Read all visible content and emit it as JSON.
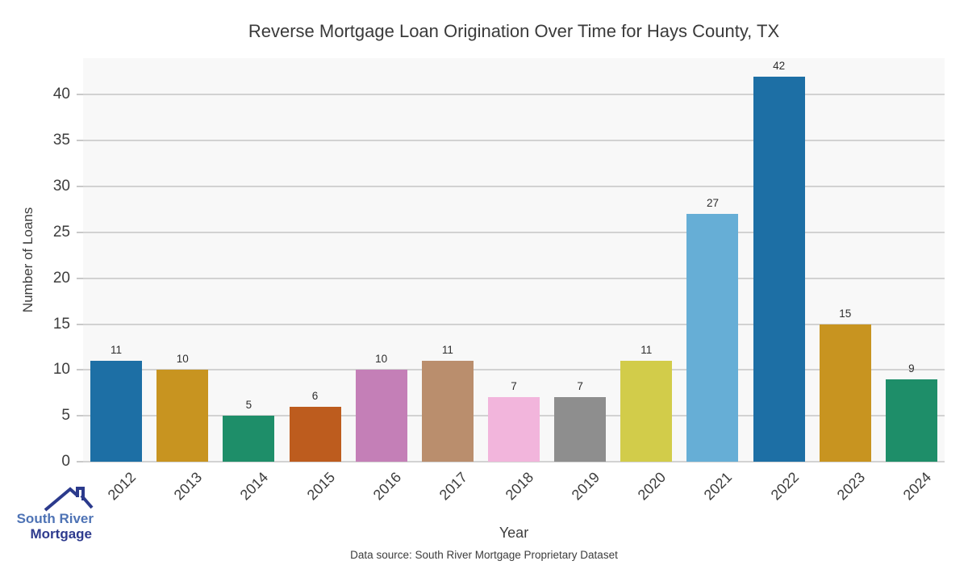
{
  "chart_data": {
    "type": "bar",
    "title": "Reverse Mortgage Loan Origination Over Time for Hays County, TX",
    "xlabel": "Year",
    "ylabel": "Number of Loans",
    "categories": [
      "2012",
      "2013",
      "2014",
      "2015",
      "2016",
      "2017",
      "2018",
      "2019",
      "2020",
      "2021",
      "2022",
      "2023",
      "2024"
    ],
    "values": [
      11,
      10,
      5,
      6,
      10,
      11,
      7,
      7,
      11,
      27,
      42,
      15,
      9
    ],
    "bar_colors": [
      "#1d6fa5",
      "#c89420",
      "#1e8e69",
      "#bd5c1e",
      "#c47fb7",
      "#ba8e6d",
      "#f2b5dc",
      "#8e8e8e",
      "#d2cc4a",
      "#66aed6",
      "#1d6fa5",
      "#c89420",
      "#1e8e69"
    ],
    "ylim": [
      0,
      44
    ],
    "yticks": [
      0,
      5,
      10,
      15,
      20,
      25,
      30,
      35,
      40
    ],
    "grid": true,
    "legend": "none",
    "plot_background": "#f8f8f8",
    "gridline_color": "#d2d2d2"
  },
  "footer": {
    "data_source": "Data source: South River Mortgage Proprietary Dataset"
  },
  "logo": {
    "line1": "South River",
    "line2": "Mortgage",
    "line1_color": "#4e73b5",
    "line2_color": "#2e3b8e",
    "icon": "house-roof-icon"
  }
}
